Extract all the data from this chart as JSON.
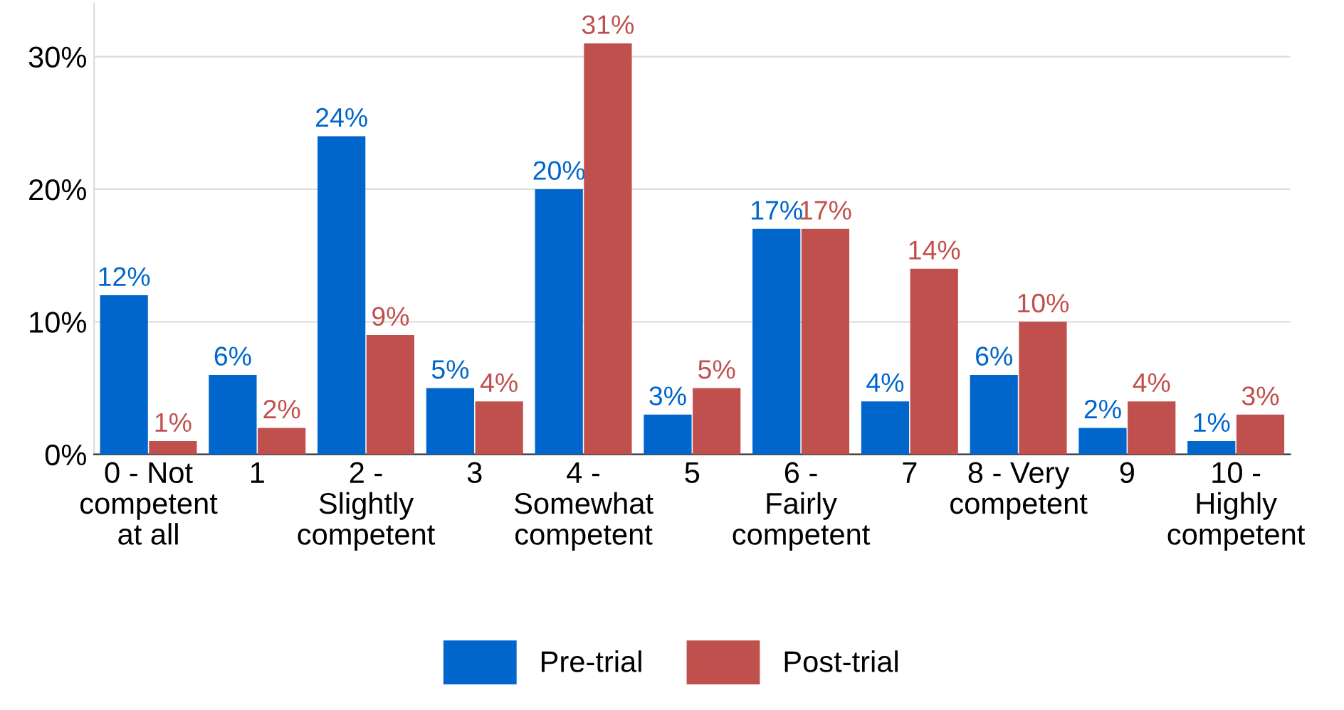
{
  "chart_data": {
    "type": "bar",
    "categories": [
      "0 - Not\ncompetent\nat all",
      "1",
      "2 -\nSlightly\ncompetent",
      "3",
      "4 -\nSomewhat\ncompetent",
      "5",
      "6 -\nFairly\ncompetent",
      "7",
      "8 - Very\ncompetent",
      "9",
      "10 -\nHighly\ncompetent"
    ],
    "series": [
      {
        "name": "Pre-trial",
        "color": "#0066cc",
        "values": [
          12,
          6,
          24,
          5,
          20,
          3,
          17,
          4,
          6,
          2,
          1
        ],
        "value_labels": [
          "12%",
          "6%",
          "24%",
          "5%",
          "20%",
          "3%",
          "17%",
          "4%",
          "6%",
          "2%",
          "1%"
        ]
      },
      {
        "name": "Post-trial",
        "color": "#c0504d",
        "values": [
          1,
          2,
          9,
          4,
          31,
          5,
          17,
          14,
          10,
          4,
          3
        ],
        "value_labels": [
          "1%",
          "2%",
          "9%",
          "4%",
          "31%",
          "5%",
          "17%",
          "14%",
          "10%",
          "4%",
          "3%"
        ]
      }
    ],
    "ylim": [
      0,
      34
    ],
    "yticks": [
      {
        "value": 0,
        "label": "0%"
      },
      {
        "value": 10,
        "label": "10%"
      },
      {
        "value": 20,
        "label": "20%"
      },
      {
        "value": 30,
        "label": "30%"
      }
    ],
    "grid": "y",
    "legend": "bottom"
  }
}
